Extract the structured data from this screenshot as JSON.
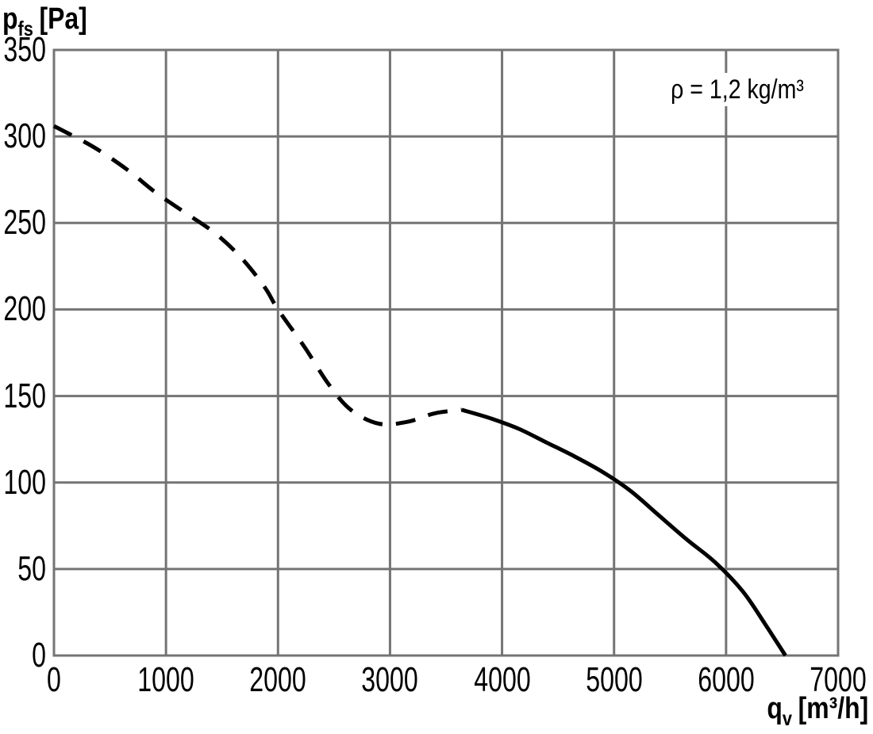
{
  "page": {
    "background": "#ffffff"
  },
  "y_axis_title": {
    "symbol": "p",
    "subscript": "fs",
    "unit": "[Pa]"
  },
  "x_axis_title": {
    "symbol": "q",
    "subscript": "v",
    "unit": "[m³/h]"
  },
  "annotation": {
    "text": "ρ = 1,2 kg/m³"
  },
  "chart_data": {
    "type": "line",
    "title": "",
    "xlabel": "qv [m³/h]",
    "ylabel": "pfs [Pa]",
    "annotation": "ρ = 1,2 kg/m³",
    "grid": true,
    "legend": false,
    "x_axis": {
      "min": 0,
      "max": 7000,
      "tick_step": 1000,
      "ticks": [
        0,
        1000,
        2000,
        3000,
        4000,
        5000,
        6000,
        7000
      ]
    },
    "y_axis": {
      "min": 0,
      "max": 350,
      "tick_step": 50,
      "ticks": [
        0,
        50,
        100,
        150,
        200,
        250,
        300,
        350
      ]
    },
    "colors": {
      "curve": "#000000",
      "grid": "#747474",
      "background": "#ffffff",
      "text": "#000000"
    },
    "series": [
      {
        "name": "fan-curve-dashed-region",
        "style": "dashed",
        "points": [
          [
            0,
            306
          ],
          [
            350,
            294
          ],
          [
            650,
            281
          ],
          [
            900,
            268
          ],
          [
            1170,
            256
          ],
          [
            1440,
            244
          ],
          [
            1670,
            230
          ],
          [
            1880,
            213
          ],
          [
            2000,
            200
          ],
          [
            2240,
            178
          ],
          [
            2450,
            157
          ],
          [
            2650,
            142
          ],
          [
            2900,
            134
          ],
          [
            3150,
            135
          ],
          [
            3400,
            140
          ],
          [
            3640,
            142
          ]
        ]
      },
      {
        "name": "fan-curve-solid-region",
        "style": "solid",
        "points": [
          [
            3640,
            142
          ],
          [
            3900,
            137
          ],
          [
            4150,
            131
          ],
          [
            4400,
            123
          ],
          [
            4650,
            115
          ],
          [
            4900,
            106
          ],
          [
            5150,
            95
          ],
          [
            5400,
            81
          ],
          [
            5650,
            67
          ],
          [
            5900,
            54
          ],
          [
            6150,
            37
          ],
          [
            6350,
            18
          ],
          [
            6530,
            0
          ]
        ]
      }
    ]
  }
}
